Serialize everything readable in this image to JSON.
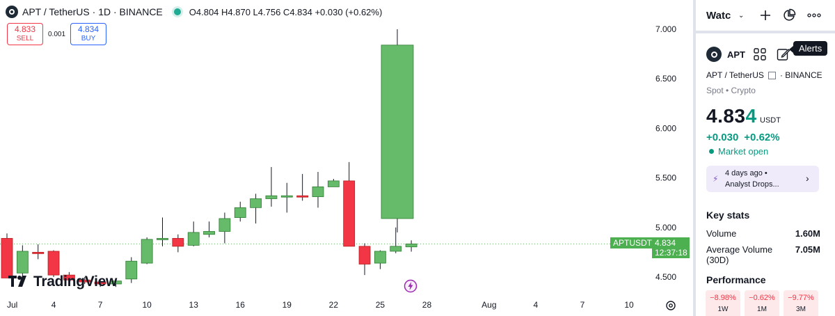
{
  "header": {
    "title": "APT / TetherUS · 1D · BINANCE",
    "ohlc": "O4.804 H4.870 L4.756 C4.834 +0.030 (+0.62%)"
  },
  "trade": {
    "sell_price": "4.833",
    "sell_label": "SELL",
    "spread": "0.001",
    "buy_price": "4.834",
    "buy_label": "BUY"
  },
  "watermark": "TradingView",
  "price_scale": {
    "symbol_tag": "APTUSDT",
    "last_price": "4.834",
    "countdown": "12:37:18"
  },
  "chart_data": {
    "type": "candlestick",
    "symbol": "APTUSDT",
    "y_ticks": [
      "7.000",
      "6.500",
      "6.000",
      "5.500",
      "5.000",
      "4.500"
    ],
    "ylim": [
      4.3,
      7.1
    ],
    "x_ticks": [
      {
        "label": "Jul",
        "day": 1
      },
      {
        "label": "4",
        "day": 4
      },
      {
        "label": "7",
        "day": 7
      },
      {
        "label": "10",
        "day": 10
      },
      {
        "label": "13",
        "day": 13
      },
      {
        "label": "16",
        "day": 16
      },
      {
        "label": "19",
        "day": 19
      },
      {
        "label": "22",
        "day": 22
      },
      {
        "label": "25",
        "day": 25
      },
      {
        "label": "28",
        "day": 28
      },
      {
        "label": "Aug",
        "day": 32
      },
      {
        "label": "4",
        "day": 35
      },
      {
        "label": "7",
        "day": 38
      },
      {
        "label": "10",
        "day": 41
      }
    ],
    "candles": [
      {
        "day": 1,
        "o": 4.89,
        "h": 4.94,
        "l": 4.49,
        "c": 4.49
      },
      {
        "day": 2,
        "o": 4.54,
        "h": 4.82,
        "l": 4.47,
        "c": 4.76
      },
      {
        "day": 3,
        "o": 4.75,
        "h": 4.83,
        "l": 4.68,
        "c": 4.74
      },
      {
        "day": 4,
        "o": 4.76,
        "h": 4.77,
        "l": 4.5,
        "c": 4.52
      },
      {
        "day": 5,
        "o": 4.52,
        "h": 4.55,
        "l": 4.45,
        "c": 4.47
      },
      {
        "day": 6,
        "o": 4.47,
        "h": 4.5,
        "l": 4.43,
        "c": 4.45
      },
      {
        "day": 7,
        "o": 4.45,
        "h": 4.48,
        "l": 4.4,
        "c": 4.43
      },
      {
        "day": 8,
        "o": 4.43,
        "h": 4.48,
        "l": 4.4,
        "c": 4.46
      },
      {
        "day": 9,
        "o": 4.48,
        "h": 4.7,
        "l": 4.44,
        "c": 4.66
      },
      {
        "day": 10,
        "o": 4.64,
        "h": 4.9,
        "l": 4.63,
        "c": 4.88
      },
      {
        "day": 11,
        "o": 4.88,
        "h": 5.1,
        "l": 4.81,
        "c": 4.89
      },
      {
        "day": 12,
        "o": 4.89,
        "h": 4.93,
        "l": 4.75,
        "c": 4.81
      },
      {
        "day": 13,
        "o": 4.82,
        "h": 5.06,
        "l": 4.81,
        "c": 4.95
      },
      {
        "day": 14,
        "o": 4.93,
        "h": 5.06,
        "l": 4.9,
        "c": 4.96
      },
      {
        "day": 15,
        "o": 4.96,
        "h": 5.15,
        "l": 4.84,
        "c": 5.09
      },
      {
        "day": 16,
        "o": 5.1,
        "h": 5.26,
        "l": 5.06,
        "c": 5.2
      },
      {
        "day": 17,
        "o": 5.2,
        "h": 5.34,
        "l": 5.04,
        "c": 5.29
      },
      {
        "day": 18,
        "o": 5.29,
        "h": 5.61,
        "l": 5.21,
        "c": 5.32
      },
      {
        "day": 19,
        "o": 5.32,
        "h": 5.45,
        "l": 5.15,
        "c": 5.32
      },
      {
        "day": 20,
        "o": 5.32,
        "h": 5.54,
        "l": 5.27,
        "c": 5.31
      },
      {
        "day": 21,
        "o": 5.31,
        "h": 5.56,
        "l": 5.2,
        "c": 5.41
      },
      {
        "day": 22,
        "o": 5.41,
        "h": 5.49,
        "l": 5.41,
        "c": 5.47
      },
      {
        "day": 23,
        "o": 5.47,
        "h": 5.66,
        "l": 4.81,
        "c": 4.81
      },
      {
        "day": 24,
        "o": 4.81,
        "h": 4.84,
        "l": 4.52,
        "c": 4.63
      },
      {
        "day": 25,
        "o": 4.64,
        "h": 4.77,
        "l": 4.58,
        "c": 4.76
      },
      {
        "day": 26,
        "o": 4.76,
        "h": 5.0,
        "l": 4.74,
        "c": 4.81
      },
      {
        "day": 27,
        "o": 4.804,
        "h": 4.87,
        "l": 4.756,
        "c": 4.834
      }
    ],
    "big_candle": {
      "day": 26.1,
      "o": 5.09,
      "h": 7.0,
      "l": 4.95,
      "c": 6.84
    },
    "colors": {
      "up": "#66bb6a",
      "up_border": "#2e7d32",
      "down": "#f23645",
      "down_border": "#b71c1c",
      "wick": "#131722"
    },
    "last_price": 4.834
  },
  "watchlist": {
    "title": "Watchlist",
    "icons": [
      "plus-icon",
      "pie-chart-icon",
      "more-icon"
    ]
  },
  "details": {
    "name": "APT",
    "alerts_tooltip": "Alerts",
    "pair": "APT / TetherUS",
    "exchange": "BINANCE",
    "category": "Spot • Crypto",
    "price_main": "4.83",
    "price_last_digit": "4",
    "price_unit": "USDT",
    "change_abs": "+0.030",
    "change_pct": "+0.62%",
    "market_status": "Market open",
    "news_ago": "4 days ago  •",
    "news_title": "Analyst Drops...",
    "key_stats_title": "Key stats",
    "volume_label": "Volume",
    "volume_value": "1.60M",
    "avg_volume_label": "Average Volume (30D)",
    "avg_volume_value": "7.05M",
    "performance_title": "Performance",
    "performance": [
      {
        "value": "−8.98%",
        "period": "1W"
      },
      {
        "value": "−0.62%",
        "period": "1M"
      },
      {
        "value": "−9.77%",
        "period": "3M"
      }
    ],
    "accent_color": "#089981"
  }
}
